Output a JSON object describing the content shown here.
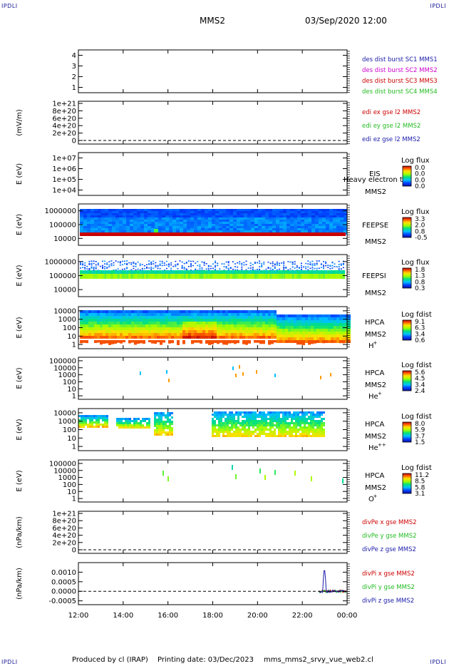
{
  "header": {
    "corner_left": "IPDLI",
    "corner_right": "IPDLI",
    "spacecraft": "MMS2",
    "datetime": "03/Sep/2020 12:00"
  },
  "footer": {
    "produced_by": "Produced by cl (IRAP)",
    "printing_date": "Printing date: 03/Dec/2023",
    "script_name": "mms_mms2_srvy_vue_web2.cl",
    "corner_left": "IPDLI",
    "corner_right": "IPDLI"
  },
  "colors": {
    "blue": "#1a1aaa",
    "magenta": "#cc00cc",
    "red": "#cc0000",
    "green": "#22bb22"
  },
  "chart_data": {
    "type": "multi-panel time series",
    "x_ticks": [
      "12:00",
      "14:00",
      "16:00",
      "18:00",
      "20:00",
      "22:00",
      "00:00"
    ],
    "xlim_hours": [
      12,
      24
    ],
    "panels": [
      {
        "id": "spacecraft-distribution",
        "type": "line",
        "ylabel": "",
        "y_ticks": [
          "1",
          "2",
          "3",
          "4"
        ],
        "legend": [
          {
            "name": "des dist burst SC1 MMS1",
            "color": "#1a1aaa"
          },
          {
            "name": "des dist burst SC2 MMS2",
            "color": "#cc00cc"
          },
          {
            "name": "des dist burst SC3 MMS3",
            "color": "#cc0000"
          },
          {
            "name": "des dist burst SC4 MMS4",
            "color": "#22bb22"
          }
        ]
      },
      {
        "id": "edi-electric-field",
        "type": "line",
        "ylabel": "(mV/m)",
        "y_ticks": [
          "0",
          "2e+20",
          "4e+20",
          "6e+20",
          "8e+20",
          "1e+21"
        ],
        "zero_line": true,
        "legend": [
          {
            "name": "edi ex gse l2 MMS2",
            "color": "#cc0000"
          },
          {
            "name": "edi ey gse l2 MMS2",
            "color": "#22bb22"
          },
          {
            "name": "edi ez gse l2 MMS2",
            "color": "#1a1aaa"
          }
        ]
      },
      {
        "id": "eis-spectrogram",
        "type": "heatmap",
        "ylabel": "E (eV)",
        "y_ticks": [
          "1e+04",
          "1e+05",
          "1e+06",
          "1e+07"
        ],
        "instrument": "EIS",
        "species_overlay": "Heavy electron to",
        "spacecraft": "MMS2",
        "colorbar_title": "Log flux",
        "colorbar_ticks": [
          "0.0",
          "0.0",
          "0.0",
          "0.0"
        ]
      },
      {
        "id": "feeps-electron-spectrogram",
        "type": "heatmap",
        "ylabel": "E (eV)",
        "y_ticks": [
          "10000",
          "100000",
          "1000000"
        ],
        "instrument": "FEEPSE",
        "spacecraft": "MMS2",
        "colorbar_title": "Log flux",
        "colorbar_ticks": [
          "3.3",
          "2.0",
          "0.8",
          "-0.5"
        ]
      },
      {
        "id": "feeps-ion-spectrogram",
        "type": "heatmap",
        "ylabel": "E (eV)",
        "y_ticks": [
          "10000",
          "100000",
          "1000000"
        ],
        "instrument": "FEEPSI",
        "spacecraft": "MMS2",
        "colorbar_title": "Log flux",
        "colorbar_ticks": [
          "1.8",
          "1.3",
          "0.8",
          "0.3"
        ]
      },
      {
        "id": "hpca-hplus-spectrogram",
        "type": "heatmap",
        "ylabel": "E (eV)",
        "y_ticks": [
          "1",
          "10",
          "100",
          "1000",
          "10000"
        ],
        "instrument": "HPCA",
        "spacecraft": "MMS2",
        "species": "H",
        "species_sup": "+",
        "colorbar_title": "Log fdist",
        "colorbar_ticks": [
          "9.1",
          "6.3",
          "3.4",
          "0.6"
        ]
      },
      {
        "id": "hpca-heplus-spectrogram",
        "type": "heatmap",
        "ylabel": "E (eV)",
        "y_ticks": [
          "1",
          "10",
          "100",
          "1000",
          "10000",
          "100000"
        ],
        "instrument": "HPCA",
        "spacecraft": "MMS2",
        "species": "He",
        "species_sup": "+",
        "colorbar_title": "Log fdist",
        "colorbar_ticks": [
          "5.6",
          "4.5",
          "3.4",
          "2.4"
        ]
      },
      {
        "id": "hpca-heplusplus-spectrogram",
        "type": "heatmap",
        "ylabel": "E (eV)",
        "y_ticks": [
          "1",
          "10",
          "100",
          "1000",
          "10000"
        ],
        "instrument": "HPCA",
        "spacecraft": "MMS2",
        "species": "He",
        "species_sup": "++",
        "colorbar_title": "Log fdist",
        "colorbar_ticks": [
          "8.0",
          "5.9",
          "3.7",
          "1.5"
        ]
      },
      {
        "id": "hpca-oplus-spectrogram",
        "type": "heatmap",
        "ylabel": "E (eV)",
        "y_ticks": [
          "1",
          "10",
          "100",
          "1000",
          "10000",
          "100000"
        ],
        "instrument": "HPCA",
        "spacecraft": "MMS2",
        "species": "O",
        "species_sup": "+",
        "colorbar_title": "Log fdist",
        "colorbar_ticks": [
          "11.2",
          "8.5",
          "5.8",
          "3.1"
        ]
      },
      {
        "id": "divpe-gse",
        "type": "line",
        "ylabel": "(nPa/km)",
        "y_ticks": [
          "0",
          "2e+20",
          "4e+20",
          "6e+20",
          "8e+20",
          "1e+21"
        ],
        "zero_line": true,
        "legend": [
          {
            "name": "divPe x gse MMS2",
            "color": "#cc0000"
          },
          {
            "name": "divPe y gse MMS2",
            "color": "#22bb22"
          },
          {
            "name": "divPe z gse MMS2",
            "color": "#1a1aaa"
          }
        ]
      },
      {
        "id": "divpi-gse",
        "type": "line",
        "ylabel": "(nPa/km)",
        "y_ticks": [
          "-0.0005",
          "0.0000",
          "0.0005",
          "0.0010"
        ],
        "ylim": [
          -0.0007,
          0.0015
        ],
        "zero_line": true,
        "data_start_hour": 22.75,
        "legend": [
          {
            "name": "divPi x gse MMS2",
            "color": "#cc0000"
          },
          {
            "name": "divPi y gse MMS2",
            "color": "#22bb22"
          },
          {
            "name": "divPi z gse MMS2",
            "color": "#1a1aaa"
          }
        ]
      }
    ]
  }
}
